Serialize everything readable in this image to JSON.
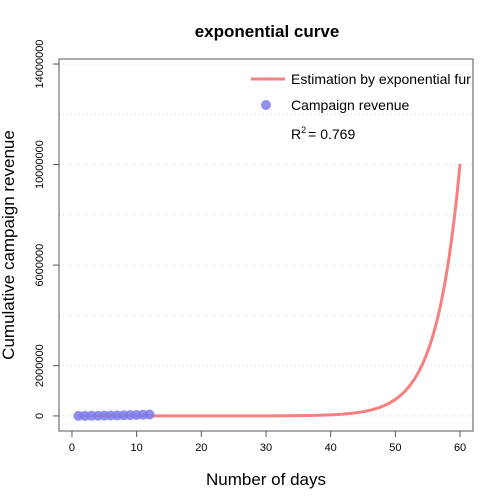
{
  "chart_data": {
    "type": "line",
    "title": "exponential curve",
    "xlabel": "Number of days",
    "ylabel": "Cumulative campaign revenue",
    "xlim": [
      -2,
      62
    ],
    "ylim": [
      -600000,
      14200000
    ],
    "xticks": [
      0,
      10,
      20,
      30,
      40,
      50,
      60
    ],
    "yticks": [
      0,
      2000000,
      6000000,
      10000000,
      14000000
    ],
    "ygrid": [
      0,
      2000000,
      4000000,
      6000000,
      8000000,
      10000000,
      12000000,
      14000000
    ],
    "grid": true,
    "legend_position": "top-right",
    "series": [
      {
        "name": "Estimation by exponential fur",
        "kind": "line",
        "color": "#f87f7f",
        "model": {
          "form": "a*exp(b*x)",
          "a": 0.8,
          "b": 0.2724
        },
        "x_range": [
          1,
          60
        ]
      },
      {
        "name": "Campaign revenue",
        "kind": "scatter",
        "color": "#7b7bef",
        "x": [
          1,
          2,
          3,
          4,
          5,
          6,
          7,
          8,
          9,
          10,
          11,
          12
        ],
        "y": [
          1500,
          3200,
          5400,
          8100,
          11300,
          15000,
          19600,
          25100,
          31200,
          38400,
          46900,
          56200
        ]
      }
    ],
    "annotation": {
      "r2_label": "R",
      "r2_sup": "2",
      "r2_value": "= 0.769"
    }
  }
}
